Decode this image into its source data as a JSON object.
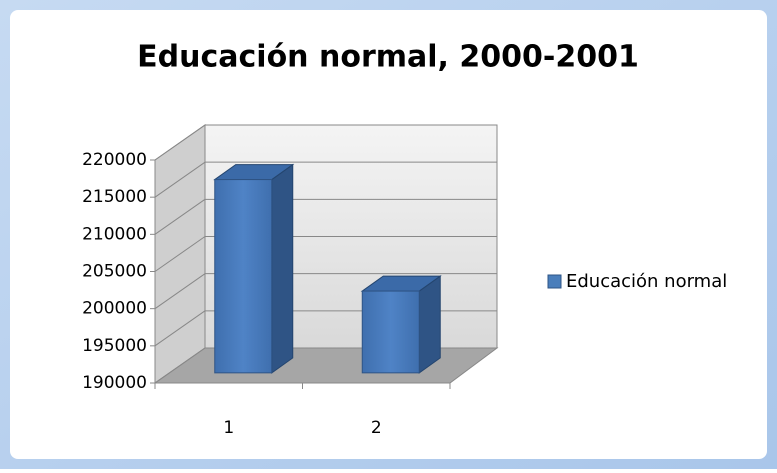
{
  "chart_data": {
    "type": "bar3d",
    "title": "Educación normal, 2000-2001",
    "categories": [
      "1",
      "2"
    ],
    "series": [
      {
        "name": "Educación normal",
        "color": "#4a7ebb",
        "values": [
          216000,
          201000
        ]
      }
    ],
    "ylim": [
      190000,
      220000
    ],
    "yticks": [
      190000,
      195000,
      200000,
      205000,
      210000,
      215000,
      220000
    ],
    "grid": true,
    "legend": "right"
  }
}
